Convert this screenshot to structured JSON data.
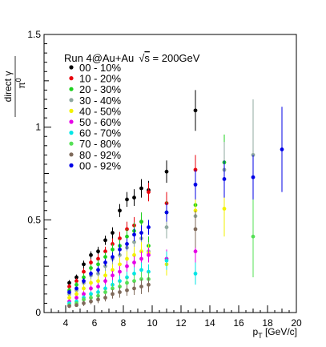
{
  "chart_data": {
    "type": "scatter",
    "title": "",
    "legend_header_prefix": "Run 4@Au+Au",
    "legend_header_sqrt": "√",
    "legend_header_s": "s",
    "legend_header_suffix": " = 200GeV",
    "ylabel_top": "direct γ",
    "ylabel_bottom": "π",
    "ylabel_sup": "0",
    "xlabel_p": "p",
    "xlabel_sub": "T",
    "xlabel_unit": " [GeV/c]",
    "xlim": [
      2.5,
      20
    ],
    "ylim": [
      0,
      1.5
    ],
    "x_ticks": [
      "4",
      "6",
      "8",
      "10",
      "12",
      "14",
      "16",
      "18",
      "20"
    ],
    "y_ticks": [
      "0",
      "0.5",
      "1",
      "1.5"
    ],
    "grid": false,
    "legend_position": "top-left",
    "series": [
      {
        "name": "00 - 10%",
        "color": "#000000",
        "points": [
          {
            "x": 4.25,
            "y": 0.16,
            "err": 0.015
          },
          {
            "x": 4.75,
            "y": 0.19,
            "err": 0.015
          },
          {
            "x": 5.25,
            "y": 0.26,
            "err": 0.02
          },
          {
            "x": 5.75,
            "y": 0.31,
            "err": 0.02
          },
          {
            "x": 6.25,
            "y": 0.33,
            "err": 0.025
          },
          {
            "x": 6.75,
            "y": 0.39,
            "err": 0.025
          },
          {
            "x": 7.25,
            "y": 0.43,
            "err": 0.03
          },
          {
            "x": 7.75,
            "y": 0.55,
            "err": 0.035
          },
          {
            "x": 8.25,
            "y": 0.61,
            "err": 0.04
          },
          {
            "x": 8.75,
            "y": 0.62,
            "err": 0.045
          },
          {
            "x": 9.25,
            "y": 0.67,
            "err": 0.05
          },
          {
            "x": 9.75,
            "y": 0.66,
            "err": 0.05
          },
          {
            "x": 11,
            "y": 0.76,
            "err": 0.06
          },
          {
            "x": 13,
            "y": 1.09,
            "err": 0.11
          }
        ]
      },
      {
        "name": "10 - 20%",
        "color": "#e8000b",
        "points": [
          {
            "x": 4.25,
            "y": 0.14,
            "err": 0.015
          },
          {
            "x": 4.75,
            "y": 0.17,
            "err": 0.015
          },
          {
            "x": 5.25,
            "y": 0.22,
            "err": 0.02
          },
          {
            "x": 5.75,
            "y": 0.27,
            "err": 0.02
          },
          {
            "x": 6.25,
            "y": 0.29,
            "err": 0.025
          },
          {
            "x": 6.75,
            "y": 0.33,
            "err": 0.025
          },
          {
            "x": 7.25,
            "y": 0.37,
            "err": 0.03
          },
          {
            "x": 7.75,
            "y": 0.4,
            "err": 0.035
          },
          {
            "x": 8.25,
            "y": 0.45,
            "err": 0.04
          },
          {
            "x": 8.75,
            "y": 0.47,
            "err": 0.045
          },
          {
            "x": 9.25,
            "y": 0.49,
            "err": 0.05
          },
          {
            "x": 9.75,
            "y": 0.65,
            "err": 0.05
          },
          {
            "x": 11,
            "y": 0.59,
            "err": 0.06
          },
          {
            "x": 13,
            "y": 0.77,
            "err": 0.08
          }
        ]
      },
      {
        "name": "20 - 30%",
        "color": "#1fd11f",
        "points": [
          {
            "x": 4.25,
            "y": 0.12,
            "err": 0.015
          },
          {
            "x": 4.75,
            "y": 0.15,
            "err": 0.015
          },
          {
            "x": 5.25,
            "y": 0.19,
            "err": 0.02
          },
          {
            "x": 5.75,
            "y": 0.24,
            "err": 0.02
          },
          {
            "x": 6.25,
            "y": 0.26,
            "err": 0.025
          },
          {
            "x": 6.75,
            "y": 0.3,
            "err": 0.025
          },
          {
            "x": 7.25,
            "y": 0.34,
            "err": 0.03
          },
          {
            "x": 7.75,
            "y": 0.36,
            "err": 0.035
          },
          {
            "x": 8.25,
            "y": 0.41,
            "err": 0.04
          },
          {
            "x": 8.75,
            "y": 0.44,
            "err": 0.045
          },
          {
            "x": 9.25,
            "y": 0.49,
            "err": 0.05
          },
          {
            "x": 9.75,
            "y": 0.36,
            "err": 0.05
          },
          {
            "x": 11,
            "y": 0.54,
            "err": 0.06
          },
          {
            "x": 13,
            "y": 0.58,
            "err": 0.08
          },
          {
            "x": 15,
            "y": 0.81,
            "err": 0.15
          }
        ]
      },
      {
        "name": "30 - 40%",
        "color": "#8fa89f",
        "points": [
          {
            "x": 4.25,
            "y": 0.1,
            "err": 0.015
          },
          {
            "x": 4.75,
            "y": 0.12,
            "err": 0.015
          },
          {
            "x": 5.25,
            "y": 0.16,
            "err": 0.02
          },
          {
            "x": 5.75,
            "y": 0.2,
            "err": 0.02
          },
          {
            "x": 6.25,
            "y": 0.21,
            "err": 0.025
          },
          {
            "x": 6.75,
            "y": 0.25,
            "err": 0.025
          },
          {
            "x": 7.25,
            "y": 0.29,
            "err": 0.03
          },
          {
            "x": 7.75,
            "y": 0.31,
            "err": 0.035
          },
          {
            "x": 8.25,
            "y": 0.35,
            "err": 0.04
          },
          {
            "x": 8.75,
            "y": 0.38,
            "err": 0.045
          },
          {
            "x": 9.25,
            "y": 0.4,
            "err": 0.05
          },
          {
            "x": 9.75,
            "y": 0.33,
            "err": 0.05
          },
          {
            "x": 11,
            "y": 0.46,
            "err": 0.06
          },
          {
            "x": 13,
            "y": 0.52,
            "err": 0.08
          },
          {
            "x": 15,
            "y": 0.77,
            "err": 0.15
          },
          {
            "x": 17,
            "y": 0.85,
            "err": 0.3
          }
        ]
      },
      {
        "name": "40 - 50%",
        "color": "#f2f200",
        "points": [
          {
            "x": 4.25,
            "y": 0.08,
            "err": 0.015
          },
          {
            "x": 4.75,
            "y": 0.1,
            "err": 0.015
          },
          {
            "x": 5.25,
            "y": 0.13,
            "err": 0.02
          },
          {
            "x": 5.75,
            "y": 0.16,
            "err": 0.02
          },
          {
            "x": 6.25,
            "y": 0.17,
            "err": 0.025
          },
          {
            "x": 6.75,
            "y": 0.2,
            "err": 0.025
          },
          {
            "x": 7.25,
            "y": 0.23,
            "err": 0.03
          },
          {
            "x": 7.75,
            "y": 0.26,
            "err": 0.035
          },
          {
            "x": 8.25,
            "y": 0.29,
            "err": 0.04
          },
          {
            "x": 8.75,
            "y": 0.31,
            "err": 0.045
          },
          {
            "x": 9.25,
            "y": 0.33,
            "err": 0.05
          },
          {
            "x": 9.75,
            "y": 0.32,
            "err": 0.05
          },
          {
            "x": 11,
            "y": 0.26,
            "err": 0.06
          },
          {
            "x": 13,
            "y": 0.55,
            "err": 0.08
          },
          {
            "x": 15,
            "y": 0.56,
            "err": 0.15
          }
        ]
      },
      {
        "name": "50 - 60%",
        "color": "#e600e6",
        "points": [
          {
            "x": 4.25,
            "y": 0.06,
            "err": 0.01
          },
          {
            "x": 4.75,
            "y": 0.08,
            "err": 0.01
          },
          {
            "x": 5.25,
            "y": 0.1,
            "err": 0.015
          },
          {
            "x": 5.75,
            "y": 0.13,
            "err": 0.015
          },
          {
            "x": 6.25,
            "y": 0.14,
            "err": 0.02
          },
          {
            "x": 6.75,
            "y": 0.17,
            "err": 0.02
          },
          {
            "x": 7.25,
            "y": 0.2,
            "err": 0.025
          },
          {
            "x": 7.75,
            "y": 0.22,
            "err": 0.03
          },
          {
            "x": 8.25,
            "y": 0.25,
            "err": 0.03
          },
          {
            "x": 8.75,
            "y": 0.27,
            "err": 0.035
          },
          {
            "x": 9.25,
            "y": 0.29,
            "err": 0.04
          },
          {
            "x": 9.75,
            "y": 0.31,
            "err": 0.04
          },
          {
            "x": 11,
            "y": 0.29,
            "err": 0.05
          },
          {
            "x": 13,
            "y": 0.33,
            "err": 0.08
          }
        ]
      },
      {
        "name": "60 - 70%",
        "color": "#00e6e6",
        "points": [
          {
            "x": 4.25,
            "y": 0.05,
            "err": 0.01
          },
          {
            "x": 4.75,
            "y": 0.06,
            "err": 0.01
          },
          {
            "x": 5.25,
            "y": 0.08,
            "err": 0.015
          },
          {
            "x": 5.75,
            "y": 0.1,
            "err": 0.015
          },
          {
            "x": 6.25,
            "y": 0.11,
            "err": 0.02
          },
          {
            "x": 6.75,
            "y": 0.13,
            "err": 0.02
          },
          {
            "x": 7.25,
            "y": 0.15,
            "err": 0.025
          },
          {
            "x": 7.75,
            "y": 0.17,
            "err": 0.03
          },
          {
            "x": 8.25,
            "y": 0.19,
            "err": 0.03
          },
          {
            "x": 8.75,
            "y": 0.21,
            "err": 0.035
          },
          {
            "x": 9.25,
            "y": 0.23,
            "err": 0.04
          },
          {
            "x": 9.75,
            "y": 0.22,
            "err": 0.04
          },
          {
            "x": 11,
            "y": 0.28,
            "err": 0.05
          },
          {
            "x": 13,
            "y": 0.21,
            "err": 0.06
          }
        ]
      },
      {
        "name": "70 - 80%",
        "color": "#55e055",
        "points": [
          {
            "x": 4.25,
            "y": 0.04,
            "err": 0.01
          },
          {
            "x": 4.75,
            "y": 0.05,
            "err": 0.01
          },
          {
            "x": 5.25,
            "y": 0.07,
            "err": 0.015
          },
          {
            "x": 5.75,
            "y": 0.08,
            "err": 0.015
          },
          {
            "x": 6.25,
            "y": 0.09,
            "err": 0.02
          },
          {
            "x": 6.75,
            "y": 0.11,
            "err": 0.02
          },
          {
            "x": 7.25,
            "y": 0.13,
            "err": 0.025
          },
          {
            "x": 7.75,
            "y": 0.14,
            "err": 0.03
          },
          {
            "x": 8.25,
            "y": 0.16,
            "err": 0.03
          },
          {
            "x": 8.75,
            "y": 0.17,
            "err": 0.035
          },
          {
            "x": 9.25,
            "y": 0.18,
            "err": 0.04
          },
          {
            "x": 9.75,
            "y": 0.18,
            "err": 0.04
          },
          {
            "x": 17,
            "y": 0.41,
            "err": 0.22
          }
        ]
      },
      {
        "name": "80 - 92%",
        "color": "#7f6a5a",
        "points": [
          {
            "x": 4.25,
            "y": 0.035,
            "err": 0.01
          },
          {
            "x": 4.75,
            "y": 0.04,
            "err": 0.01
          },
          {
            "x": 5.25,
            "y": 0.05,
            "err": 0.015
          },
          {
            "x": 5.75,
            "y": 0.06,
            "err": 0.015
          },
          {
            "x": 6.25,
            "y": 0.07,
            "err": 0.02
          },
          {
            "x": 6.75,
            "y": 0.08,
            "err": 0.02
          },
          {
            "x": 7.25,
            "y": 0.1,
            "err": 0.025
          },
          {
            "x": 7.75,
            "y": 0.11,
            "err": 0.03
          },
          {
            "x": 8.25,
            "y": 0.12,
            "err": 0.03
          },
          {
            "x": 8.75,
            "y": 0.13,
            "err": 0.035
          },
          {
            "x": 9.25,
            "y": 0.14,
            "err": 0.04
          },
          {
            "x": 9.75,
            "y": 0.15,
            "err": 0.04
          },
          {
            "x": 13,
            "y": 0.45,
            "err": 0.1
          }
        ]
      },
      {
        "name": "00 - 92%",
        "color": "#0000e6",
        "points": [
          {
            "x": 4.25,
            "y": 0.11,
            "err": 0.01
          },
          {
            "x": 4.75,
            "y": 0.13,
            "err": 0.01
          },
          {
            "x": 5.25,
            "y": 0.17,
            "err": 0.015
          },
          {
            "x": 5.75,
            "y": 0.21,
            "err": 0.015
          },
          {
            "x": 6.25,
            "y": 0.23,
            "err": 0.02
          },
          {
            "x": 6.75,
            "y": 0.27,
            "err": 0.02
          },
          {
            "x": 7.25,
            "y": 0.3,
            "err": 0.025
          },
          {
            "x": 7.75,
            "y": 0.34,
            "err": 0.03
          },
          {
            "x": 8.25,
            "y": 0.37,
            "err": 0.03
          },
          {
            "x": 8.75,
            "y": 0.42,
            "err": 0.035
          },
          {
            "x": 9.25,
            "y": 0.43,
            "err": 0.04
          },
          {
            "x": 9.75,
            "y": 0.46,
            "err": 0.04
          },
          {
            "x": 11,
            "y": 0.54,
            "err": 0.05
          },
          {
            "x": 13,
            "y": 0.69,
            "err": 0.08
          },
          {
            "x": 15,
            "y": 0.72,
            "err": 0.1
          },
          {
            "x": 17,
            "y": 0.73,
            "err": 0.12
          },
          {
            "x": 19,
            "y": 0.88,
            "err": 0.23
          }
        ]
      }
    ]
  }
}
